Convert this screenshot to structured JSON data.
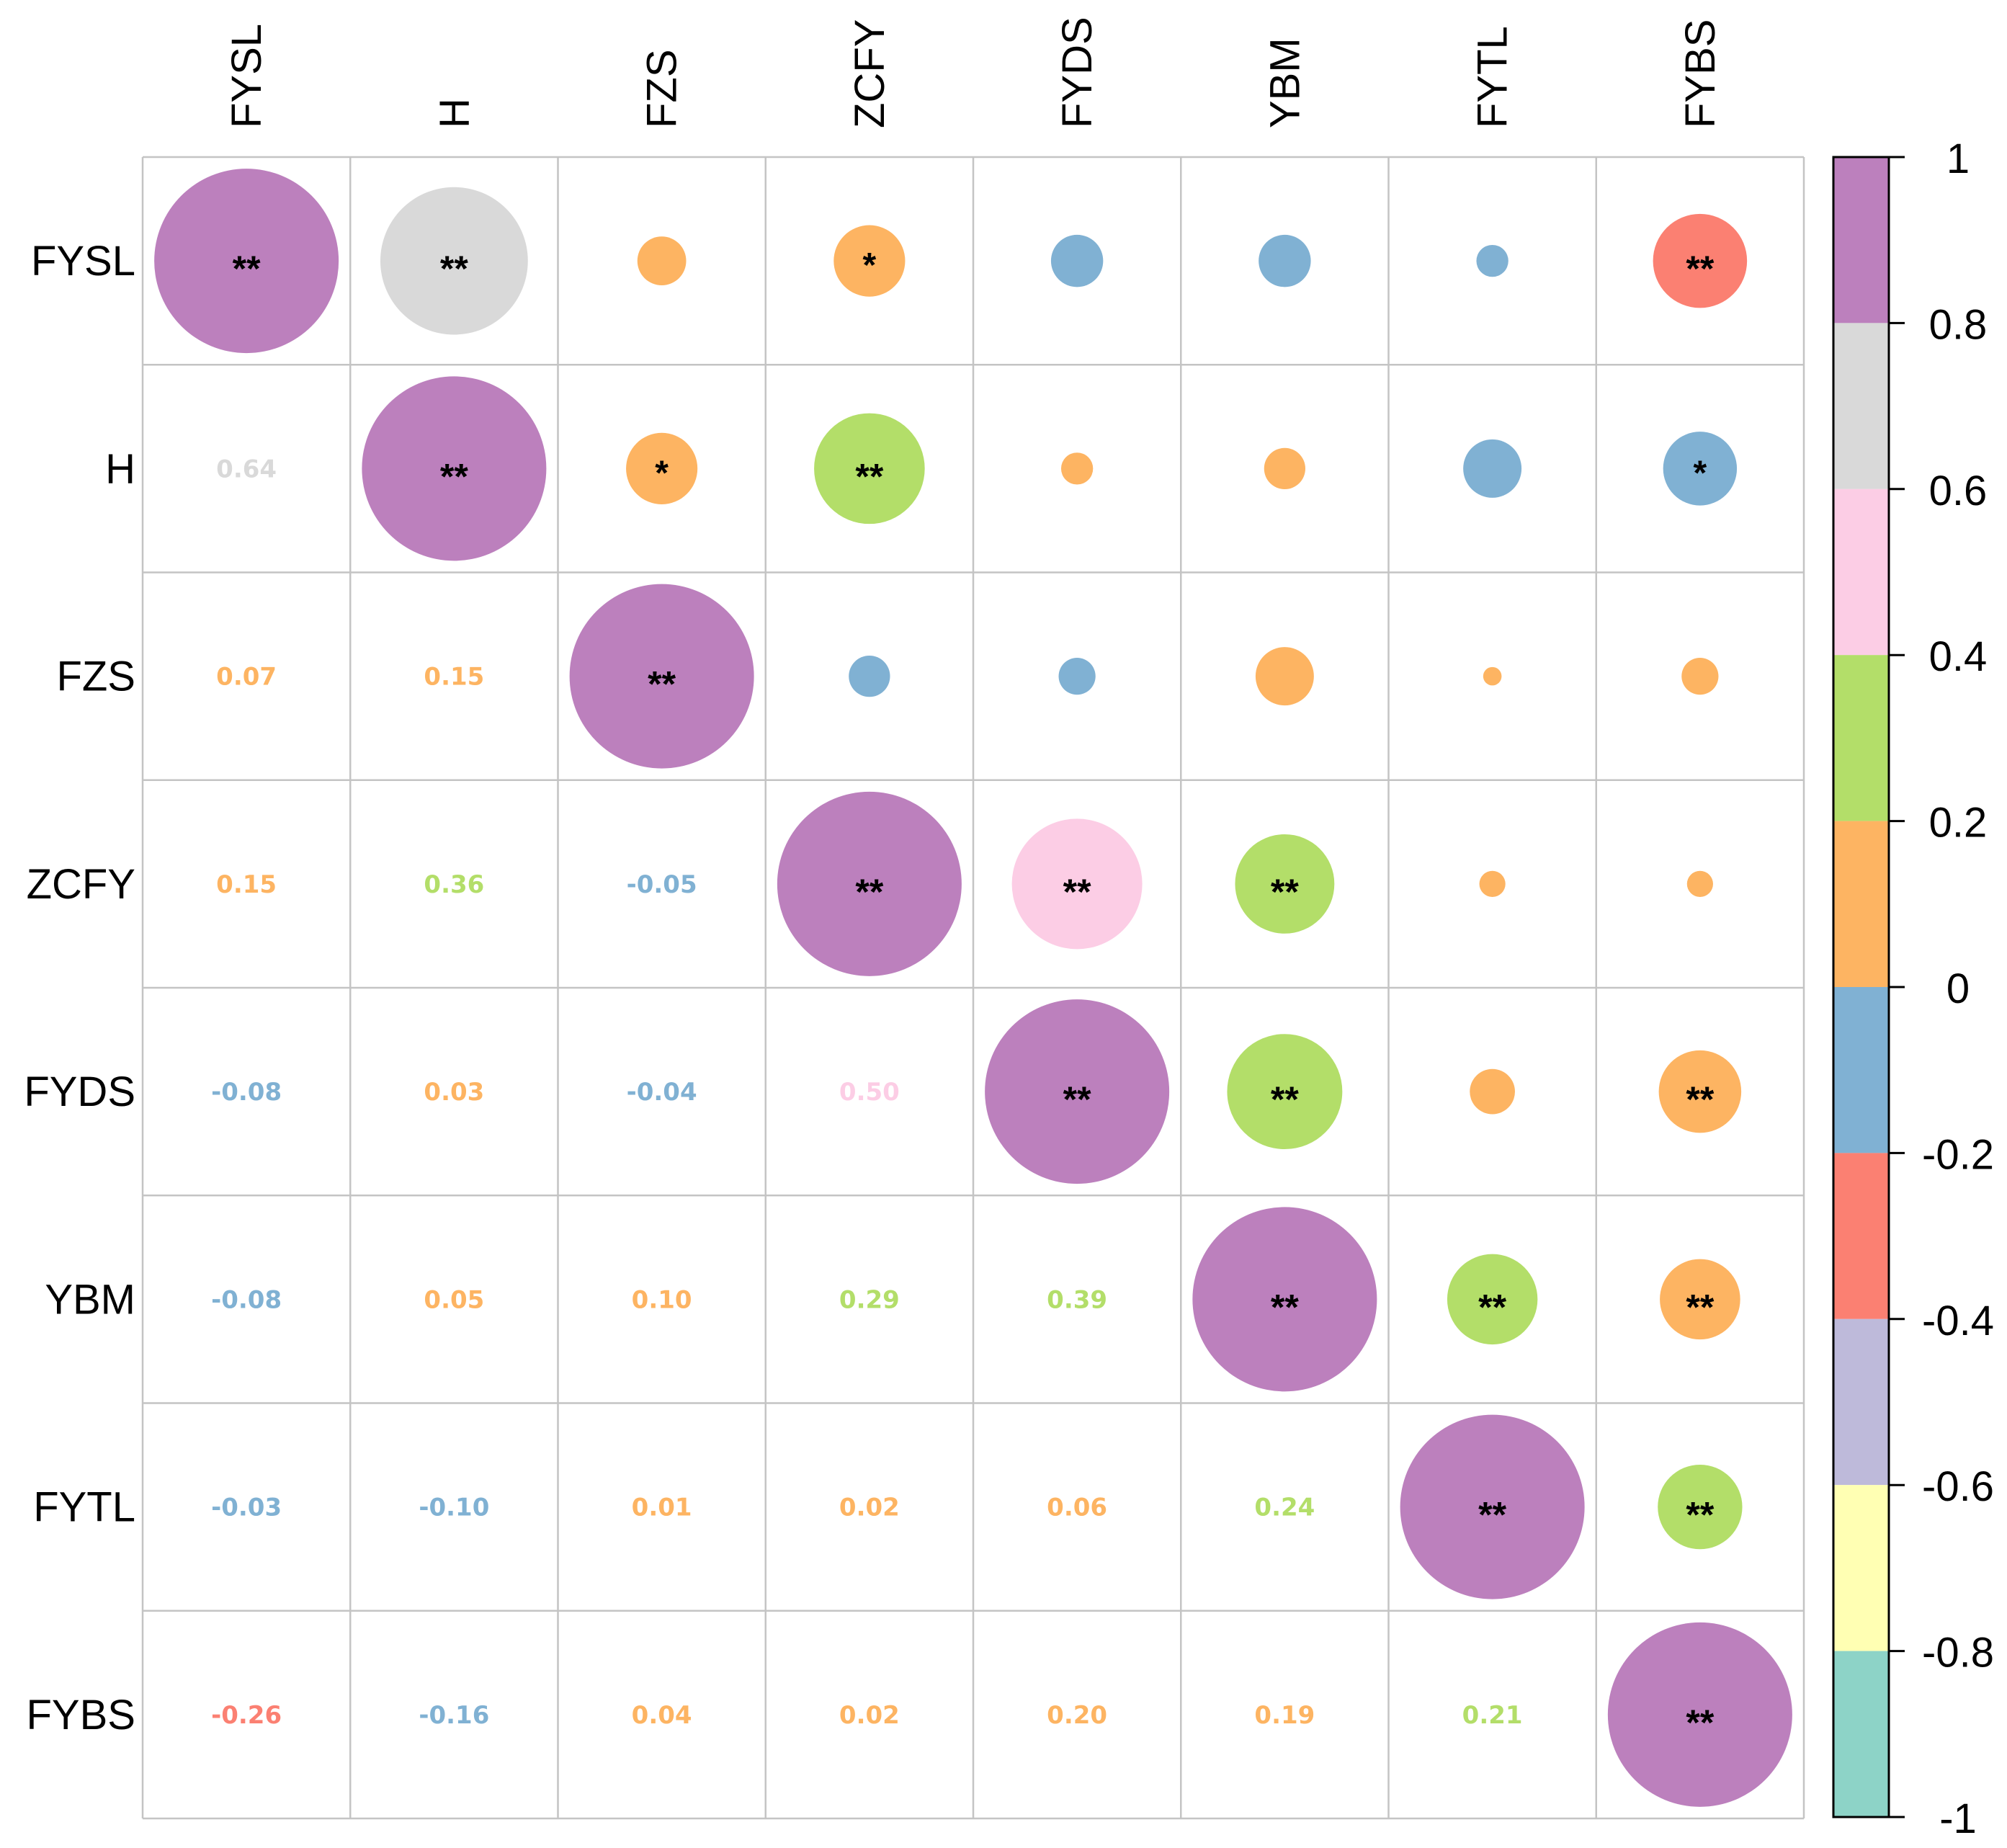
{
  "chart_data": {
    "type": "heatmap",
    "style": "correlation-matrix (upper: sized circles with significance stars, lower: numeric coefficients)",
    "variables": [
      "FYSL",
      "H",
      "FZS",
      "ZCFY",
      "FYDS",
      "YBM",
      "FYTL",
      "FYBS"
    ],
    "matrix": [
      [
        1.0,
        0.64,
        0.07,
        0.15,
        -0.08,
        -0.08,
        -0.03,
        -0.26
      ],
      [
        0.64,
        1.0,
        0.15,
        0.36,
        0.03,
        0.05,
        -0.1,
        -0.16
      ],
      [
        0.07,
        0.15,
        1.0,
        -0.05,
        -0.04,
        0.1,
        0.01,
        0.04
      ],
      [
        0.15,
        0.36,
        -0.05,
        1.0,
        0.5,
        0.29,
        0.02,
        0.02
      ],
      [
        -0.08,
        0.03,
        -0.04,
        0.5,
        1.0,
        0.39,
        0.06,
        0.2
      ],
      [
        -0.08,
        0.05,
        0.1,
        0.29,
        0.39,
        1.0,
        0.24,
        0.19
      ],
      [
        -0.03,
        -0.1,
        0.01,
        0.02,
        0.06,
        0.24,
        1.0,
        0.21
      ],
      [
        -0.26,
        -0.16,
        0.04,
        0.02,
        0.2,
        0.19,
        0.21,
        1.0
      ]
    ],
    "lower_labels": [
      [
        null,
        null,
        null,
        null,
        null,
        null,
        null,
        null
      ],
      [
        "0.64",
        null,
        null,
        null,
        null,
        null,
        null,
        null
      ],
      [
        "0.07",
        "0.15",
        null,
        null,
        null,
        null,
        null,
        null
      ],
      [
        "0.15",
        "0.36",
        "-0.05",
        null,
        null,
        null,
        null,
        null
      ],
      [
        "-0.08",
        "0.03",
        "-0.04",
        "0.50",
        null,
        null,
        null,
        null
      ],
      [
        "-0.08",
        "0.05",
        "0.10",
        "0.29",
        "0.39",
        null,
        null,
        null
      ],
      [
        "-0.03",
        "-0.10",
        "0.01",
        "0.02",
        "0.06",
        "0.24",
        null,
        null
      ],
      [
        "-0.26",
        "-0.16",
        "0.04",
        "0.02",
        "0.20",
        "0.19",
        "0.21",
        null
      ]
    ],
    "significance": [
      [
        "**",
        "**",
        "",
        "*",
        "",
        "",
        "",
        "**"
      ],
      [
        null,
        "**",
        "*",
        "**",
        "",
        "",
        "",
        "*"
      ],
      [
        null,
        null,
        "**",
        "",
        "",
        "",
        "",
        ""
      ],
      [
        null,
        null,
        null,
        "**",
        "**",
        "**",
        "",
        ""
      ],
      [
        null,
        null,
        null,
        null,
        "**",
        "**",
        "",
        "**"
      ],
      [
        null,
        null,
        null,
        null,
        null,
        "**",
        "**",
        "**"
      ],
      [
        null,
        null,
        null,
        null,
        null,
        null,
        "**",
        "**"
      ],
      [
        null,
        null,
        null,
        null,
        null,
        null,
        null,
        "**"
      ]
    ],
    "colorbar": {
      "range": [
        -1,
        1
      ],
      "tick_labels": [
        "1",
        "0.8",
        "0.6",
        "0.4",
        "0.2",
        "0",
        "-0.2",
        "-0.4",
        "-0.6",
        "-0.8",
        "-1"
      ],
      "bins": [
        {
          "from": 0.8,
          "to": 1.0,
          "color": "#BC80BD"
        },
        {
          "from": 0.6,
          "to": 0.8,
          "color": "#D9D9D9"
        },
        {
          "from": 0.4,
          "to": 0.6,
          "color": "#FCCDE5"
        },
        {
          "from": 0.2,
          "to": 0.4,
          "color": "#B3DE69"
        },
        {
          "from": 0.0,
          "to": 0.2,
          "color": "#FDB462"
        },
        {
          "from": -0.2,
          "to": 0.0,
          "color": "#80B1D3"
        },
        {
          "from": -0.4,
          "to": -0.2,
          "color": "#FB8072"
        },
        {
          "from": -0.6,
          "to": -0.4,
          "color": "#BEBADA"
        },
        {
          "from": -0.8,
          "to": -0.6,
          "color": "#FFFFB3"
        },
        {
          "from": -1.0,
          "to": -0.8,
          "color": "#8DD3C7"
        }
      ]
    }
  }
}
